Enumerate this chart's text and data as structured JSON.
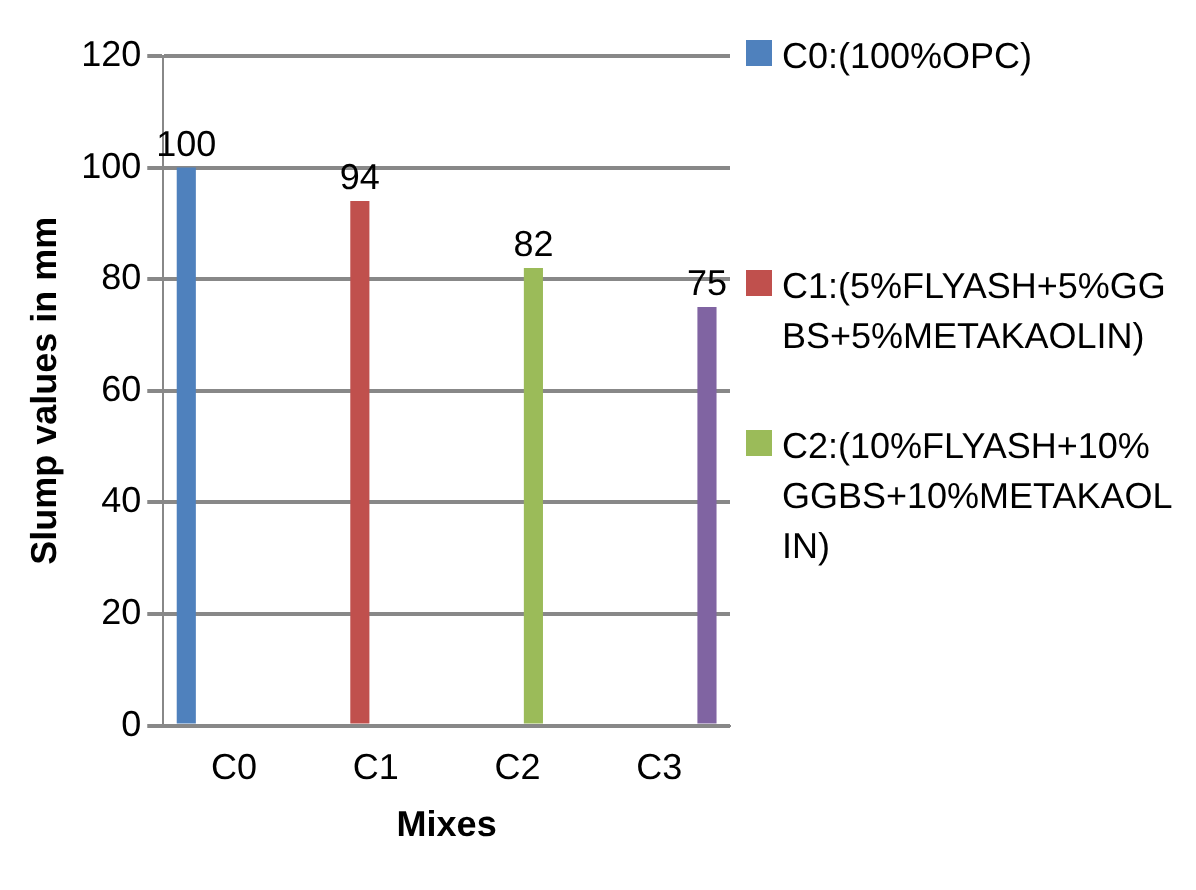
{
  "chart_data": {
    "type": "bar",
    "xlabel": "Mixes",
    "ylabel": "Slump values in mm",
    "categories": [
      "C0",
      "C1",
      "C2",
      "C3"
    ],
    "series": [
      {
        "name": "C0:(100%OPC)",
        "color": "#4f81bd",
        "values": [
          100,
          null,
          null,
          null
        ]
      },
      {
        "name": "C1:(5%FLYASH+5%GGBS+5%METAKAOLIN)",
        "color": "#c0504d",
        "values": [
          null,
          94,
          null,
          null
        ]
      },
      {
        "name": "C2:(10%FLYASH+10%GGBS+10%METAKAOLIN)",
        "color": "#9bbb59",
        "values": [
          null,
          null,
          82,
          null
        ]
      },
      {
        "color": "#8064a2",
        "values": [
          null,
          null,
          null,
          75
        ]
      }
    ],
    "ylim": [
      0,
      120
    ],
    "yticks": [
      0,
      20,
      40,
      60,
      80,
      100,
      120
    ],
    "grid": "y",
    "legend": "right",
    "data_labels": true
  }
}
